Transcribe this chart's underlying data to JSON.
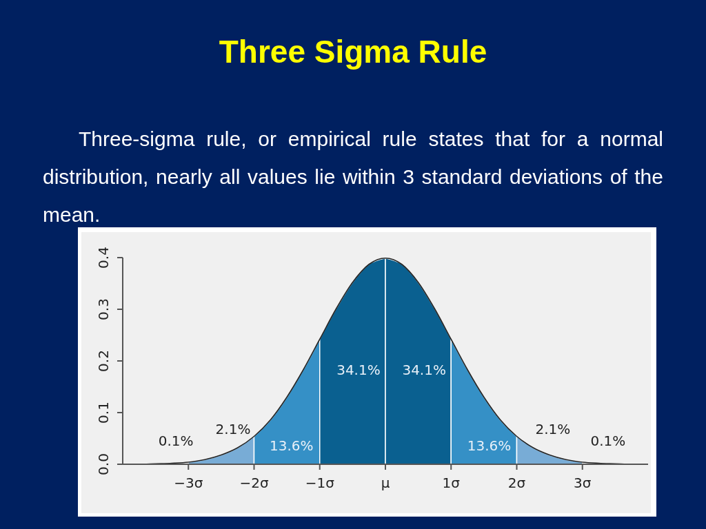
{
  "chart_data": {
    "type": "area",
    "title": "Three Sigma Rule",
    "subtitle": "Three-sigma rule, or empirical rule states that for a normal distribution, nearly all values lie within 3 standard deviations of the mean.",
    "xlim": [
      -4,
      4
    ],
    "ylim": [
      0,
      0.4
    ],
    "xticks": [
      {
        "value": -3,
        "label": "−3σ"
      },
      {
        "value": -2,
        "label": "−2σ"
      },
      {
        "value": -1,
        "label": "−1σ"
      },
      {
        "value": 0,
        "label": "μ"
      },
      {
        "value": 1,
        "label": "1σ"
      },
      {
        "value": 2,
        "label": "2σ"
      },
      {
        "value": 3,
        "label": "3σ"
      }
    ],
    "yticks": [
      {
        "value": 0,
        "label": "0.0"
      },
      0.1,
      0.2,
      0.3,
      0.4
    ],
    "series": [
      {
        "color": "#78acd6",
        "x": [
          -3,
          -2.75,
          -2.5,
          -2.25,
          -2
        ],
        "values": [
          0.004,
          0.009,
          0.018,
          0.032,
          0.054
        ]
      },
      {
        "color": "#3590c6",
        "x": [
          -2,
          -1.75,
          -1.5,
          -1.25,
          -1
        ],
        "values": [
          0.054,
          0.086,
          0.13,
          0.183,
          0.242
        ]
      },
      {
        "color": "#0a6090",
        "x": [
          -1,
          -0.75,
          -0.5,
          -0.25,
          0
        ],
        "values": [
          0.242,
          0.301,
          0.352,
          0.387,
          0.399
        ]
      },
      {
        "color": "#0a6090",
        "x": [
          0,
          0.25,
          0.5,
          0.75,
          1
        ],
        "values": [
          0.399,
          0.387,
          0.352,
          0.301,
          0.242
        ]
      },
      {
        "color": "#3590c6",
        "x": [
          1,
          1.25,
          1.5,
          1.75,
          2
        ],
        "values": [
          0.242,
          0.183,
          0.13,
          0.086,
          0.054
        ]
      },
      {
        "color": "#78acd6",
        "x": [
          2,
          2.25,
          2.5,
          2.75,
          3
        ],
        "values": [
          0.054,
          0.032,
          0.018,
          0.009,
          0.004
        ]
      },
      {
        "type": "line",
        "color": "#222222",
        "x": [
          -4,
          -3.75,
          -3.5,
          -3.25,
          -3,
          -2.75,
          -2.5,
          -2.25,
          -2,
          -1.75,
          -1.5,
          -1.25,
          -1,
          -0.75,
          -0.5,
          -0.25,
          0,
          0.25,
          0.5,
          0.75,
          1,
          1.25,
          1.5,
          1.75,
          2,
          2.25,
          2.5,
          2.75,
          3,
          3.25,
          3.5,
          3.75,
          4
        ],
        "values": [
          0,
          0,
          0.001,
          0.002,
          0.004,
          0.009,
          0.018,
          0.032,
          0.054,
          0.086,
          0.13,
          0.183,
          0.242,
          0.301,
          0.352,
          0.387,
          0.399,
          0.387,
          0.352,
          0.301,
          0.242,
          0.183,
          0.13,
          0.086,
          0.054,
          0.032,
          0.018,
          0.009,
          0.004,
          0.002,
          0.001,
          0,
          0
        ]
      }
    ],
    "annotations": [
      "0.1%",
      "2.1%",
      "13.6%",
      "34.1%",
      "34.1%",
      "13.6%",
      "2.1%",
      "0.1%"
    ]
  }
}
